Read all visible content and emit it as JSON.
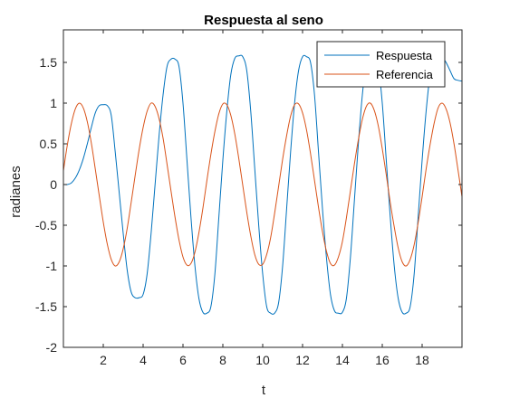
{
  "chart_data": {
    "type": "line",
    "title": "Respuesta al seno",
    "xlabel": "t",
    "ylabel": "radianes",
    "xlim": [
      0,
      20
    ],
    "ylim": [
      -2.0,
      1.9
    ],
    "xticks": [
      2,
      4,
      6,
      8,
      10,
      12,
      14,
      16,
      18
    ],
    "yticks": [
      -2,
      -1.5,
      -1,
      -0.5,
      0,
      0.5,
      1,
      1.5
    ],
    "ytick_labels": [
      "-2",
      "-1.5",
      "-1",
      "-0.5",
      "0",
      "0.5",
      "1",
      "1.5"
    ],
    "grid": false,
    "legend_position": "top-right",
    "series": [
      {
        "name": "Respuesta",
        "color": "#0072BD",
        "x": [
          0,
          0.2,
          0.4,
          0.6,
          0.8,
          1.0,
          1.2,
          1.4,
          1.6,
          1.8,
          2.0,
          2.2,
          2.4,
          2.6,
          2.8,
          3.0,
          3.2,
          3.4,
          3.6,
          3.8,
          4.0,
          4.2,
          4.4,
          4.6,
          4.8,
          5.0,
          5.2,
          5.4,
          5.6,
          5.8,
          6.0,
          6.2,
          6.4,
          6.6,
          6.8,
          7.0,
          7.2,
          7.4,
          7.6,
          7.8,
          8.0,
          8.2,
          8.4,
          8.6,
          8.8,
          9.0,
          9.2,
          9.4,
          9.6,
          9.8,
          10.0,
          10.2,
          10.4,
          10.6,
          10.8,
          11.0,
          11.2,
          11.4,
          11.6,
          11.8,
          12.0,
          12.2,
          12.4,
          12.6,
          12.8,
          13.0,
          13.2,
          13.4,
          13.6,
          13.8,
          14.0,
          14.2,
          14.4,
          14.6,
          14.8,
          15.0,
          15.2,
          15.4,
          15.6,
          15.8,
          16.0,
          16.2,
          16.4,
          16.6,
          16.8,
          17.0,
          17.2,
          17.4,
          17.6,
          17.8,
          18.0,
          18.2,
          18.4,
          18.6,
          18.8,
          19.0,
          19.2,
          19.4,
          19.6,
          19.8,
          20.0
        ],
        "values": [
          0.0,
          0.0,
          0.02,
          0.08,
          0.18,
          0.32,
          0.5,
          0.7,
          0.88,
          0.97,
          0.98,
          0.97,
          0.85,
          0.4,
          -0.1,
          -0.6,
          -1.05,
          -1.32,
          -1.39,
          -1.39,
          -1.35,
          -1.1,
          -0.6,
          0.0,
          0.6,
          1.1,
          1.45,
          1.54,
          1.54,
          1.45,
          1.0,
          0.3,
          -0.4,
          -1.0,
          -1.4,
          -1.57,
          -1.58,
          -1.5,
          -1.1,
          -0.4,
          0.3,
          0.9,
          1.35,
          1.55,
          1.58,
          1.57,
          1.4,
          0.9,
          0.2,
          -0.5,
          -1.1,
          -1.5,
          -1.58,
          -1.58,
          -1.45,
          -1.0,
          -0.3,
          0.4,
          1.0,
          1.4,
          1.57,
          1.57,
          1.5,
          1.1,
          0.4,
          -0.3,
          -0.9,
          -1.35,
          -1.55,
          -1.58,
          -1.57,
          -1.4,
          -0.9,
          -0.2,
          0.5,
          1.1,
          1.5,
          1.58,
          1.58,
          1.45,
          1.0,
          0.3,
          -0.4,
          -1.0,
          -1.4,
          -1.57,
          -1.58,
          -1.5,
          -1.1,
          -0.4,
          0.3,
          0.9,
          1.35,
          1.55,
          1.58,
          1.57,
          1.5,
          1.4,
          1.3,
          1.28,
          1.27
        ]
      },
      {
        "name": "Referencia",
        "color": "#D95319",
        "x": [
          0,
          0.2,
          0.4,
          0.6,
          0.8,
          1.0,
          1.2,
          1.4,
          1.6,
          1.8,
          2.0,
          2.2,
          2.4,
          2.6,
          2.8,
          3.0,
          3.2,
          3.4,
          3.6,
          3.8,
          4.0,
          4.2,
          4.4,
          4.6,
          4.8,
          5.0,
          5.2,
          5.4,
          5.6,
          5.8,
          6.0,
          6.2,
          6.4,
          6.6,
          6.8,
          7.0,
          7.2,
          7.4,
          7.6,
          7.8,
          8.0,
          8.2,
          8.4,
          8.6,
          8.8,
          9.0,
          9.2,
          9.4,
          9.6,
          9.8,
          10.0,
          10.2,
          10.4,
          10.6,
          10.8,
          11.0,
          11.2,
          11.4,
          11.6,
          11.8,
          12.0,
          12.2,
          12.4,
          12.6,
          12.8,
          13.0,
          13.2,
          13.4,
          13.6,
          13.8,
          14.0,
          14.2,
          14.4,
          14.6,
          14.8,
          15.0,
          15.2,
          15.4,
          15.6,
          15.8,
          16.0,
          16.2,
          16.4,
          16.6,
          16.8,
          17.0,
          17.2,
          17.4,
          17.6,
          17.8,
          18.0,
          18.2,
          18.4,
          18.6,
          18.8,
          19.0,
          19.2,
          19.4,
          19.6,
          19.8,
          20.0
        ],
        "values": [
          0.17,
          0.49,
          0.75,
          0.93,
          1.0,
          0.94,
          0.77,
          0.51,
          0.19,
          -0.14,
          -0.46,
          -0.73,
          -0.92,
          -1.0,
          -0.95,
          -0.79,
          -0.54,
          -0.22,
          0.11,
          0.43,
          0.7,
          0.9,
          1.0,
          0.96,
          0.81,
          0.57,
          0.25,
          -0.08,
          -0.4,
          -0.68,
          -0.89,
          -0.99,
          -0.97,
          -0.83,
          -0.59,
          -0.29,
          0.05,
          0.37,
          0.65,
          0.87,
          0.99,
          0.98,
          0.85,
          0.62,
          0.32,
          -0.01,
          -0.34,
          -0.63,
          -0.86,
          -0.98,
          -0.98,
          -0.86,
          -0.65,
          -0.35,
          -0.02,
          0.31,
          0.6,
          0.84,
          0.98,
          0.99,
          0.88,
          0.67,
          0.38,
          0.05,
          -0.28,
          -0.58,
          -0.82,
          -0.97,
          -0.99,
          -0.89,
          -0.7,
          -0.41,
          -0.08,
          0.25,
          0.55,
          0.8,
          0.96,
          1.0,
          0.91,
          0.72,
          0.44,
          0.12,
          -0.22,
          -0.52,
          -0.78,
          -0.95,
          -1.0,
          -0.92,
          -0.74,
          -0.47,
          -0.15,
          0.19,
          0.49,
          0.75,
          0.94,
          1.0,
          0.93,
          0.76,
          0.5,
          0.18,
          -0.15
        ]
      }
    ]
  }
}
